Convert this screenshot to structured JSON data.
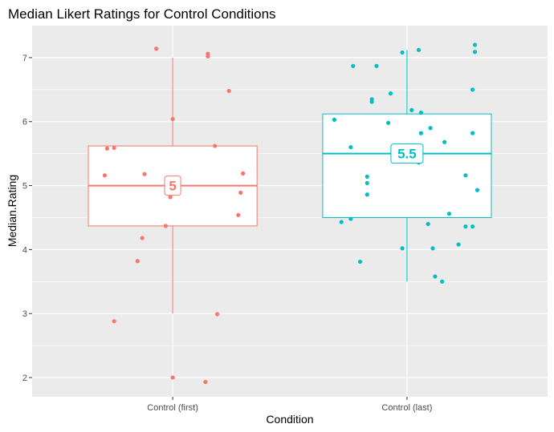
{
  "chart_data": {
    "type": "box",
    "title": "Median Likert Ratings for Control Conditions",
    "xlabel": "Condition",
    "ylabel": "Median.Rating",
    "ylim": [
      1.7,
      7.5
    ],
    "yticks": [
      2,
      3,
      4,
      5,
      6,
      7
    ],
    "grid": true,
    "legend": "none",
    "categories": [
      "Control (first)",
      "Control (last)"
    ],
    "colors": [
      "#f8766d",
      "#00bfc4"
    ],
    "boxes": [
      {
        "category": "Control (first)",
        "min": 3.0,
        "q1": 4.37,
        "median": 5.0,
        "q3": 5.62,
        "max": 7.0,
        "median_label": "5"
      },
      {
        "category": "Control (last)",
        "min": 3.5,
        "q1": 4.5,
        "median": 5.5,
        "q3": 6.12,
        "max": 7.12,
        "median_label": "5.5"
      }
    ],
    "points": [
      [
        {
          "x": -0.07,
          "y": 7.14
        },
        {
          "x": 0.15,
          "y": 7.06
        },
        {
          "x": 0.15,
          "y": 7.02
        },
        {
          "x": 0.24,
          "y": 6.48
        },
        {
          "x": 0.0,
          "y": 6.04
        },
        {
          "x": -0.28,
          "y": 5.58
        },
        {
          "x": -0.25,
          "y": 5.59
        },
        {
          "x": 0.18,
          "y": 5.62
        },
        {
          "x": -0.29,
          "y": 5.16
        },
        {
          "x": -0.12,
          "y": 5.18
        },
        {
          "x": 0.3,
          "y": 5.19
        },
        {
          "x": -0.02,
          "y": 4.98
        },
        {
          "x": 0.29,
          "y": 4.89
        },
        {
          "x": -0.01,
          "y": 4.82
        },
        {
          "x": 0.28,
          "y": 4.54
        },
        {
          "x": -0.03,
          "y": 4.37
        },
        {
          "x": -0.13,
          "y": 4.18
        },
        {
          "x": -0.15,
          "y": 3.82
        },
        {
          "x": 0.19,
          "y": 2.99
        },
        {
          "x": -0.25,
          "y": 2.88
        },
        {
          "x": 0.0,
          "y": 2.0
        },
        {
          "x": 0.14,
          "y": 1.93
        }
      ],
      [
        {
          "x": 0.29,
          "y": 7.2
        },
        {
          "x": 0.29,
          "y": 7.09
        },
        {
          "x": 0.05,
          "y": 7.12
        },
        {
          "x": -0.02,
          "y": 7.08
        },
        {
          "x": -0.23,
          "y": 6.87
        },
        {
          "x": -0.13,
          "y": 6.87
        },
        {
          "x": 0.28,
          "y": 6.5
        },
        {
          "x": -0.07,
          "y": 6.44
        },
        {
          "x": -0.15,
          "y": 6.35
        },
        {
          "x": -0.15,
          "y": 6.31
        },
        {
          "x": 0.02,
          "y": 6.18
        },
        {
          "x": 0.06,
          "y": 6.14
        },
        {
          "x": -0.31,
          "y": 6.03
        },
        {
          "x": -0.08,
          "y": 5.98
        },
        {
          "x": 0.1,
          "y": 5.9
        },
        {
          "x": 0.06,
          "y": 5.82
        },
        {
          "x": 0.28,
          "y": 5.82
        },
        {
          "x": 0.16,
          "y": 5.68
        },
        {
          "x": -0.24,
          "y": 5.6
        },
        {
          "x": 0.05,
          "y": 5.36
        },
        {
          "x": 0.25,
          "y": 5.16
        },
        {
          "x": -0.17,
          "y": 5.14
        },
        {
          "x": -0.17,
          "y": 5.04
        },
        {
          "x": 0.3,
          "y": 4.93
        },
        {
          "x": -0.17,
          "y": 4.86
        },
        {
          "x": 0.18,
          "y": 4.56
        },
        {
          "x": -0.24,
          "y": 4.48
        },
        {
          "x": -0.28,
          "y": 4.43
        },
        {
          "x": 0.09,
          "y": 4.4
        },
        {
          "x": 0.25,
          "y": 4.36
        },
        {
          "x": 0.28,
          "y": 4.36
        },
        {
          "x": 0.22,
          "y": 4.08
        },
        {
          "x": -0.02,
          "y": 4.02
        },
        {
          "x": 0.11,
          "y": 4.02
        },
        {
          "x": -0.2,
          "y": 3.81
        },
        {
          "x": 0.12,
          "y": 3.58
        },
        {
          "x": 0.15,
          "y": 3.5
        }
      ]
    ]
  }
}
